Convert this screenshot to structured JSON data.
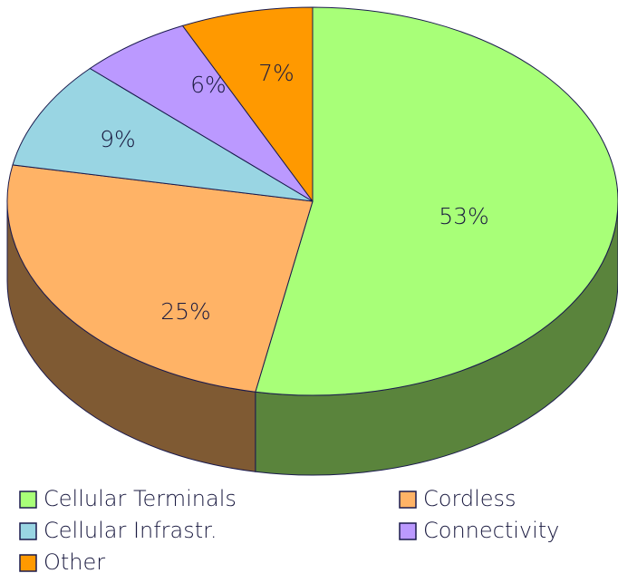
{
  "chart_data": {
    "type": "pie",
    "categories": [
      "Cellular Terminals",
      "Cordless",
      "Cellular Infrastr.",
      "Connectivity",
      "Other"
    ],
    "values": [
      53,
      25,
      9,
      6,
      7
    ],
    "value_labels": [
      "53%",
      "25%",
      "9%",
      "6%",
      "7%"
    ],
    "colors": [
      "#a8ff78",
      "#ffb366",
      "#99d5e3",
      "#bb99ff",
      "#ff9900"
    ],
    "side_colors": [
      "#5a843c",
      "#7f5a33",
      "#4d6b72",
      "#5e4d80",
      "#804d00"
    ],
    "legend": "bottom"
  }
}
